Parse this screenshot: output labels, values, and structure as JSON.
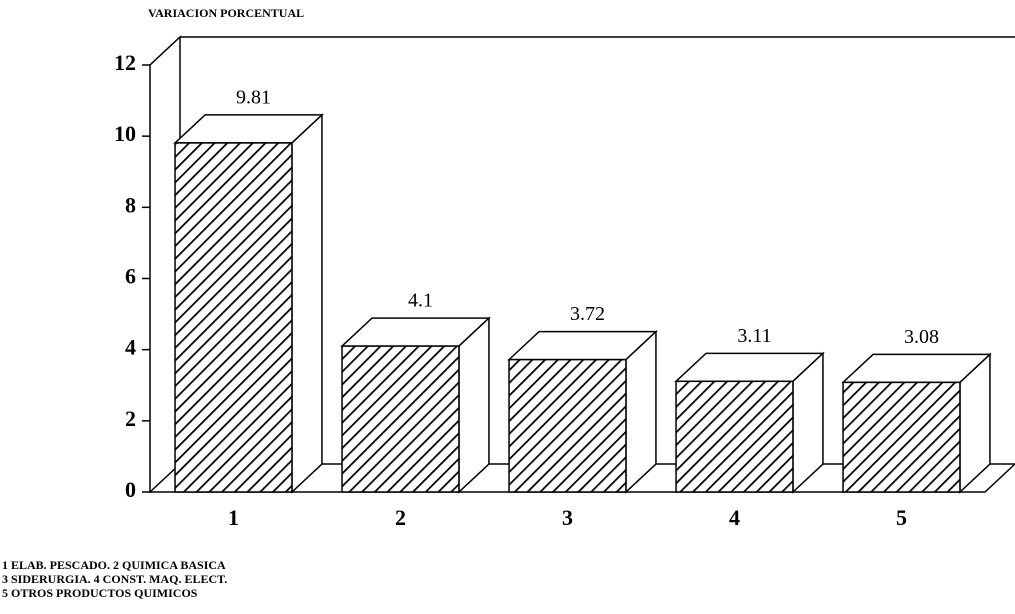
{
  "chart_data": {
    "type": "bar3d",
    "title": "VARIACION PORCENTUAL",
    "categories": [
      "1",
      "2",
      "3",
      "4",
      "5"
    ],
    "values": [
      9.81,
      4.1,
      3.72,
      3.11,
      3.08
    ],
    "ylim": [
      0,
      12
    ],
    "yticks": [
      0,
      2,
      4,
      6,
      8,
      10,
      12
    ],
    "pattern": "hatch",
    "notes": [
      "1 ELAB. PESCADO.   2 QUIMICA BASICA",
      "3 SIDERURGIA.   4 CONST. MAQ. ELECT.",
      "5 OTROS PRODUCTOS QUIMICOS"
    ]
  }
}
